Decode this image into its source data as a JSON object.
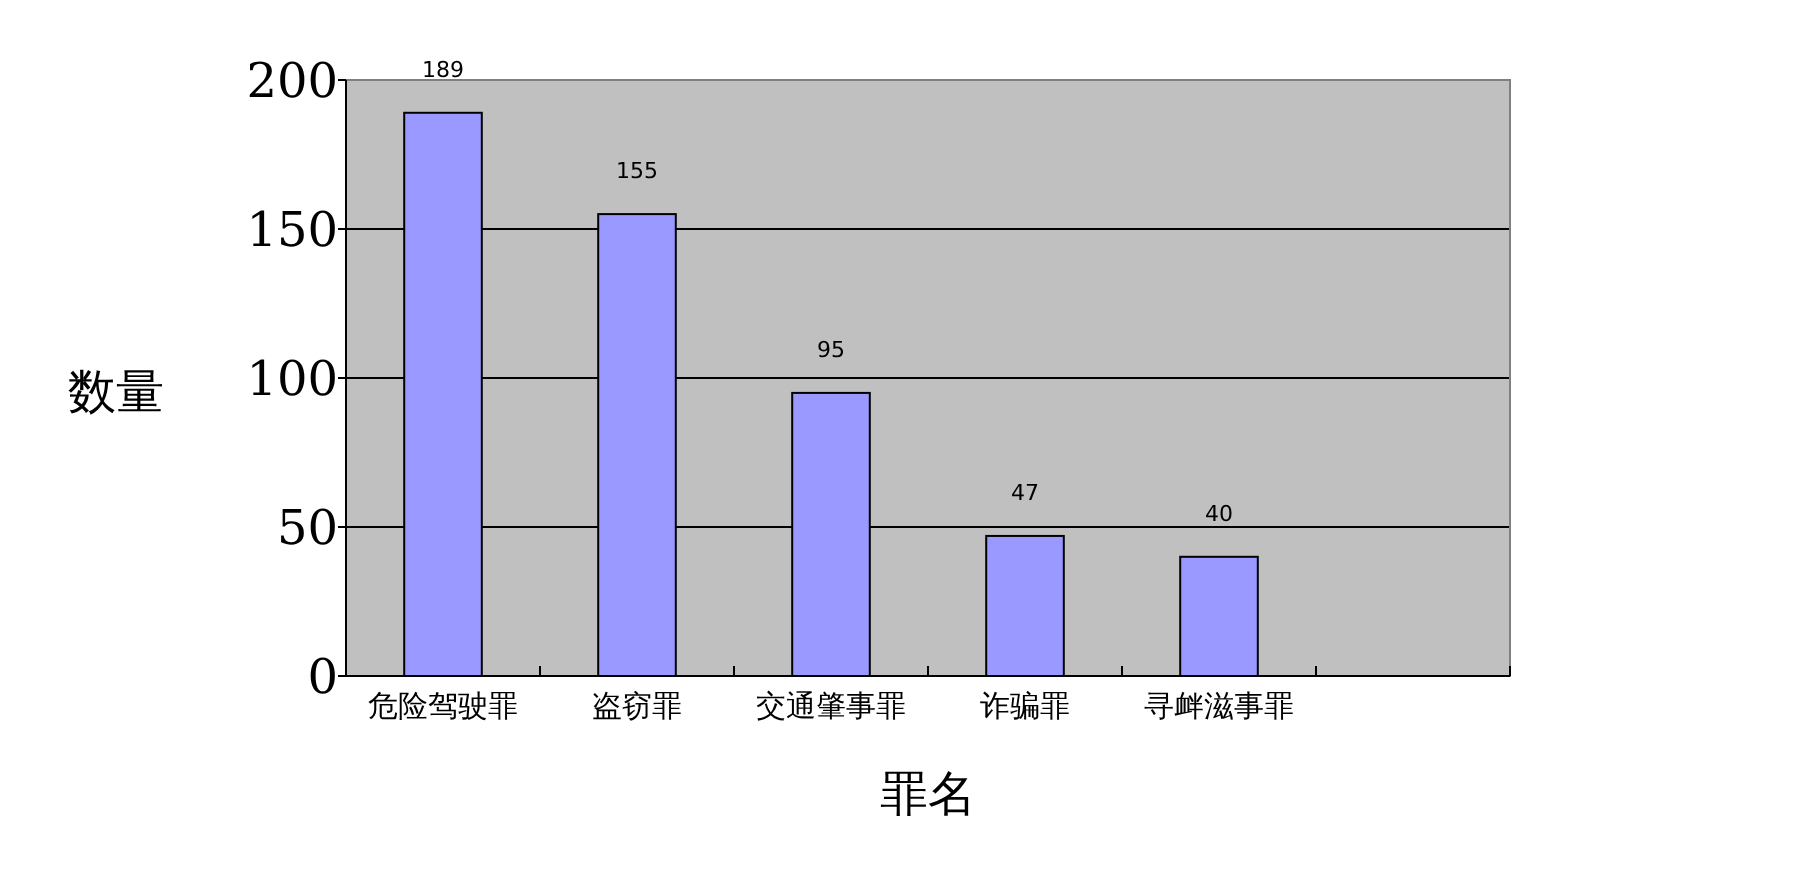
{
  "chart_data": {
    "type": "bar",
    "xlabel": "罪名",
    "ylabel": "数量",
    "categories": [
      "危险驾驶罪",
      "盗窃罪",
      "交通肇事罪",
      "诈骗罪",
      "寻衅滋事罪",
      null
    ],
    "values": [
      189,
      155,
      95,
      47,
      40,
      null
    ],
    "color": "#9999ff",
    "ylim": [
      0,
      200
    ],
    "yticks": [
      0,
      50,
      100,
      150,
      200
    ],
    "grid": "y",
    "data_labels": true
  }
}
